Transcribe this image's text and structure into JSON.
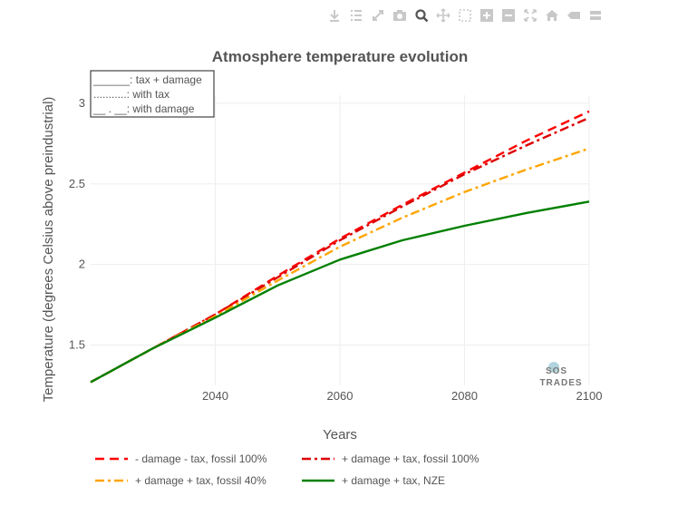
{
  "toolbar": {
    "icons": [
      "download-icon",
      "list-icon",
      "expand-icon",
      "camera-icon",
      "zoom-icon",
      "pan-icon",
      "box-select-icon",
      "zoom-in-icon",
      "zoom-out-icon",
      "autoscale-icon",
      "home-icon",
      "tag-icon",
      "bars-icon"
    ],
    "icon_color": "#c8c8c8",
    "active_icon_color": "#555555"
  },
  "logo": {
    "line1": "SOS",
    "line2": "TRADES"
  },
  "line_notes": [
    "______: tax + damage",
    "...........: with tax",
    "__ . __: with damage"
  ],
  "chart_data": {
    "type": "line",
    "title": "Atmosphere temperature evolution",
    "xlabel": "Years",
    "ylabel": "Temperature (degrees Celsius above preindustrial)",
    "xlim": [
      2020,
      2100
    ],
    "ylim": [
      1.25,
      3.05
    ],
    "xticks": [
      2040,
      2060,
      2080,
      2100
    ],
    "yticks": [
      1.5,
      2,
      2.5,
      3
    ],
    "ytick_labels": [
      "1.5",
      "2",
      "2.5",
      "3"
    ],
    "grid": true,
    "legend_position": "bottom",
    "series": [
      {
        "name": "- damage - tax, fossil 100%",
        "color": "#ff0000",
        "dash": "dash",
        "x": [
          2020,
          2030,
          2040,
          2050,
          2060,
          2070,
          2080,
          2090,
          2100
        ],
        "y": [
          1.27,
          1.48,
          1.69,
          1.93,
          2.16,
          2.37,
          2.57,
          2.77,
          2.95
        ]
      },
      {
        "name": "+ damage + tax, fossil 100%",
        "color": "#dd0000",
        "dash": "dashdot",
        "x": [
          2020,
          2030,
          2040,
          2050,
          2060,
          2070,
          2080,
          2090,
          2100
        ],
        "y": [
          1.27,
          1.48,
          1.69,
          1.92,
          2.15,
          2.36,
          2.56,
          2.74,
          2.91
        ]
      },
      {
        "name": "+ damage + tax, fossil 40%",
        "color": "#ffa500",
        "dash": "dashdot",
        "x": [
          2020,
          2030,
          2040,
          2050,
          2060,
          2070,
          2080,
          2090,
          2100
        ],
        "y": [
          1.27,
          1.48,
          1.68,
          1.9,
          2.11,
          2.29,
          2.45,
          2.59,
          2.72
        ]
      },
      {
        "name": "+ damage + tax, NZE",
        "color": "#008000",
        "dash": "solid",
        "x": [
          2020,
          2030,
          2040,
          2050,
          2060,
          2070,
          2080,
          2090,
          2100
        ],
        "y": [
          1.27,
          1.48,
          1.67,
          1.87,
          2.03,
          2.15,
          2.24,
          2.32,
          2.39
        ]
      }
    ]
  }
}
